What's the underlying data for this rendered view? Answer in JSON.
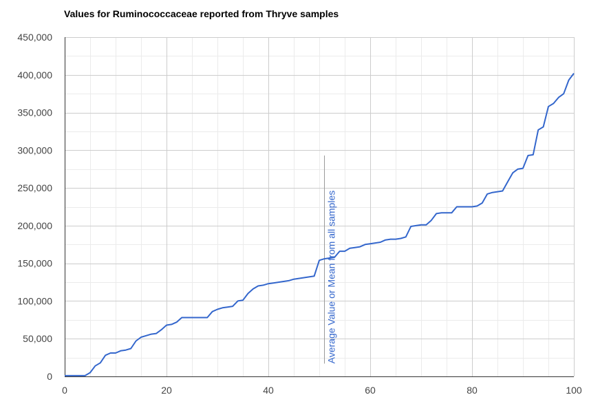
{
  "chart_data": {
    "type": "line",
    "title": "Values for Ruminococcaceae reported from Thryve samples",
    "xlabel": "",
    "ylabel": "",
    "xlim": [
      0,
      100
    ],
    "ylim": [
      0,
      450000
    ],
    "x_ticks": [
      0,
      20,
      40,
      60,
      80,
      100
    ],
    "x_tick_labels": [
      "0",
      "20",
      "40",
      "60",
      "80",
      "100"
    ],
    "y_ticks": [
      0,
      50000,
      100000,
      150000,
      200000,
      250000,
      300000,
      350000,
      400000,
      450000
    ],
    "y_tick_labels": [
      "0",
      "50,000",
      "100,000",
      "150,000",
      "200,000",
      "250,000",
      "300,000",
      "350,000",
      "400,000",
      "450,000"
    ],
    "grid": true,
    "legend": "none",
    "series": [
      {
        "color": "#3366cc",
        "x": [
          0,
          1,
          2,
          3,
          4,
          5,
          6,
          7,
          8,
          9,
          10,
          11,
          12,
          13,
          14,
          15,
          16,
          17,
          18,
          19,
          20,
          21,
          22,
          23,
          24,
          25,
          26,
          27,
          28,
          29,
          30,
          31,
          32,
          33,
          34,
          35,
          36,
          37,
          38,
          39,
          40,
          41,
          42,
          43,
          44,
          45,
          46,
          47,
          48,
          49,
          50,
          51,
          52,
          53,
          54,
          55,
          56,
          57,
          58,
          59,
          60,
          61,
          62,
          63,
          64,
          65,
          66,
          67,
          68,
          69,
          70,
          71,
          72,
          73,
          74,
          75,
          76,
          77,
          78,
          79,
          80,
          81,
          82,
          83,
          84,
          85,
          86,
          87,
          88,
          89,
          90,
          91,
          92,
          93,
          94,
          95,
          96,
          97,
          98,
          99,
          100
        ],
        "values": [
          1000,
          1000,
          1000,
          1000,
          1000,
          5000,
          14000,
          18000,
          28000,
          31000,
          31000,
          34000,
          35000,
          37000,
          47000,
          52000,
          54000,
          56000,
          57000,
          62000,
          68000,
          69000,
          72000,
          78000,
          78000,
          78000,
          78000,
          78000,
          78000,
          86000,
          89000,
          91000,
          92000,
          93000,
          100000,
          101000,
          110000,
          116000,
          120000,
          121000,
          123000,
          124000,
          125000,
          126000,
          127000,
          129000,
          130000,
          131000,
          132000,
          133000,
          154000,
          156000,
          157000,
          158000,
          166000,
          166000,
          170000,
          171000,
          172000,
          175000,
          176000,
          177000,
          178000,
          181000,
          182000,
          182000,
          183000,
          185000,
          199000,
          200000,
          201000,
          201000,
          207000,
          216000,
          217000,
          217000,
          217000,
          225000,
          225000,
          225000,
          225000,
          226000,
          230000,
          242000,
          244000,
          245000,
          246000,
          258000,
          270000,
          275000,
          276000,
          293000,
          294000,
          327000,
          331000,
          358000,
          362000,
          370000,
          375000,
          393000,
          402000
        ]
      }
    ],
    "annotation": {
      "x": 51,
      "y_from": 17000,
      "y_to": 293000,
      "label": "Average Value or Mean from all samples",
      "color": "#3366cc",
      "line_color": "#999999"
    },
    "colors": {
      "line": "#3366cc",
      "grid_major": "#cccccc",
      "grid_minor": "#ebebeb",
      "axis": "#333333",
      "tick_text": "#444444"
    }
  }
}
